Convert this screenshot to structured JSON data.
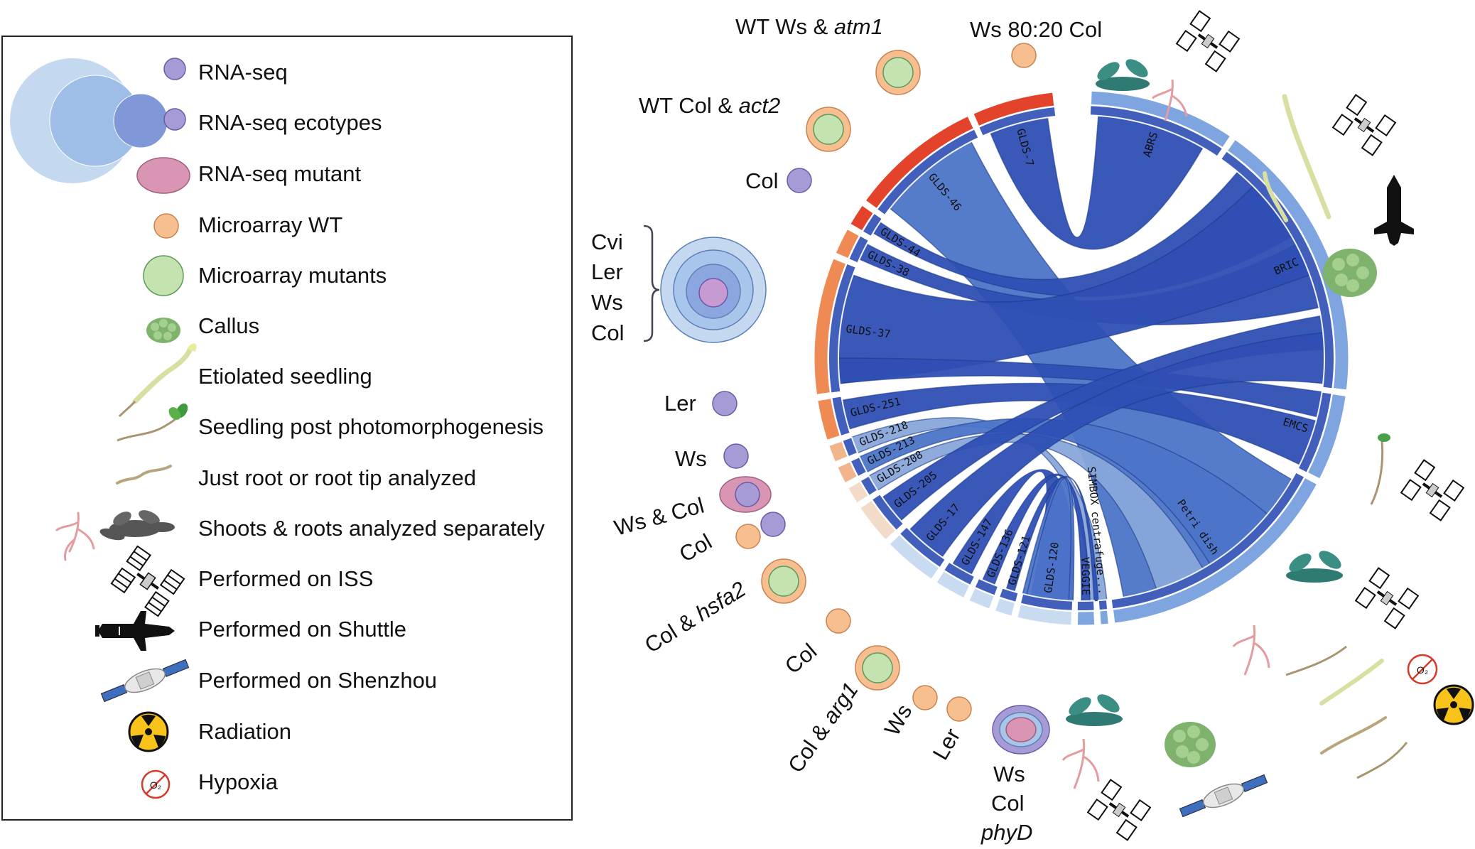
{
  "legend": {
    "items": [
      {
        "key": "rnaseq",
        "label": "RNA-seq",
        "icon": "rnaseq-circle-icon"
      },
      {
        "key": "rnaseq_ecotypes",
        "label": "RNA-seq ecotypes",
        "icon": "nested-circles-icon"
      },
      {
        "key": "rnaseq_mutant",
        "label": "RNA-seq mutant",
        "icon": "pink-ellipse-icon"
      },
      {
        "key": "microarray_wt",
        "label": "Microarray WT",
        "icon": "orange-circle-icon"
      },
      {
        "key": "microarray_mutants",
        "label": "Microarray mutants",
        "icon": "green-circle-icon"
      },
      {
        "key": "callus",
        "label": "Callus",
        "icon": "callus-icon"
      },
      {
        "key": "etiolated",
        "label": "Etiolated  seedling",
        "icon": "etiolated-seedling-icon"
      },
      {
        "key": "photomorph",
        "label": "Seedling post photomorphogenesis",
        "icon": "green-seedling-icon"
      },
      {
        "key": "root",
        "label": "Just root or root tip analyzed",
        "icon": "root-icon"
      },
      {
        "key": "shoots_roots",
        "label": "Shoots & roots analyzed separately",
        "icon": "shoot-root-icon"
      },
      {
        "key": "iss",
        "label": "Performed on ISS",
        "icon": "iss-icon"
      },
      {
        "key": "shuttle",
        "label": "Performed on Shuttle",
        "icon": "shuttle-icon"
      },
      {
        "key": "shenzhou",
        "label": "Performed on Shenzhou",
        "icon": "shenzhou-icon"
      },
      {
        "key": "radiation",
        "label": "Radiation",
        "icon": "radiation-icon"
      },
      {
        "key": "hypoxia",
        "label": "Hypoxia",
        "icon": "hypoxia-icon",
        "o2": "O₂"
      }
    ]
  },
  "colors": {
    "ribbon_dark": "#2e4fb4",
    "ribbon_mid": "#4c74c8",
    "ribbon_light": "#88a6da",
    "rnaseq": "#a79bd6",
    "microarray_wt": "#f7be90",
    "microarray_mut": "#c5e3b0",
    "rnaseq_mutant": "#d896b4",
    "arc_red": "#e3432b",
    "arc_orange": "#f08a55",
    "arc_peach": "#f2b48c",
    "arc_pale": "#f2dcc9",
    "arc_blue": "#7ea5df",
    "arc_paleblue": "#c9dbf1"
  },
  "chord": {
    "sectors": [
      {
        "id": "GLDS-7",
        "label": "GLDS-7"
      },
      {
        "id": "GLDS-46",
        "label": "GLDS-46"
      },
      {
        "id": "GLDS-44",
        "label": "GLDS-44"
      },
      {
        "id": "GLDS-38",
        "label": "GLDS-38"
      },
      {
        "id": "GLDS-37",
        "label": "GLDS-37"
      },
      {
        "id": "GLDS-251",
        "label": "GLDS-251"
      },
      {
        "id": "GLDS-218",
        "label": "GLDS-218"
      },
      {
        "id": "GLDS-213",
        "label": "GLDS-213"
      },
      {
        "id": "GLDS-208",
        "label": "GLDS-208"
      },
      {
        "id": "GLDS-205",
        "label": "GLDS-205"
      },
      {
        "id": "GLDS-17",
        "label": "GLDS-17"
      },
      {
        "id": "GLDS-147",
        "label": "GLDS-147"
      },
      {
        "id": "GLDS-136",
        "label": "GLDS-136"
      },
      {
        "id": "GLDS-121",
        "label": "GLDS-121"
      },
      {
        "id": "GLDS-120",
        "label": "GLDS-120"
      },
      {
        "id": "VEGGIE",
        "label": "VEGGIE"
      },
      {
        "id": "SIMBOX",
        "label": "SIMBOX centrafuge..."
      },
      {
        "id": "Petri",
        "label": "Petri dish"
      },
      {
        "id": "EMCS",
        "label": "EMCS"
      },
      {
        "id": "BRIC",
        "label": "BRIC"
      },
      {
        "id": "ABRS",
        "label": "ABRS"
      }
    ]
  },
  "annotations": {
    "glds7": "Ws 80:20 Col",
    "glds46_prefix": "WT Ws & ",
    "glds46_mutant": "atm1",
    "glds44_prefix": "WT Col & ",
    "glds44_mutant": "act2",
    "glds38": "Col",
    "glds37_lines": [
      "Cvi",
      "Ler",
      "Ws",
      "Col"
    ],
    "glds251": "Ler",
    "glds218": "Ws",
    "glds213": "Ws & Col",
    "glds208": "Col",
    "glds205_prefix": "Col & ",
    "glds205_mutant": "hsfa2",
    "glds17": "Col",
    "glds147_prefix": "Col & ",
    "glds147_mutant": "arg1",
    "glds136": "Ws",
    "glds121": "Ler",
    "glds120_lines": [
      "Ws",
      "Col"
    ],
    "glds120_mutant": "phyD"
  }
}
